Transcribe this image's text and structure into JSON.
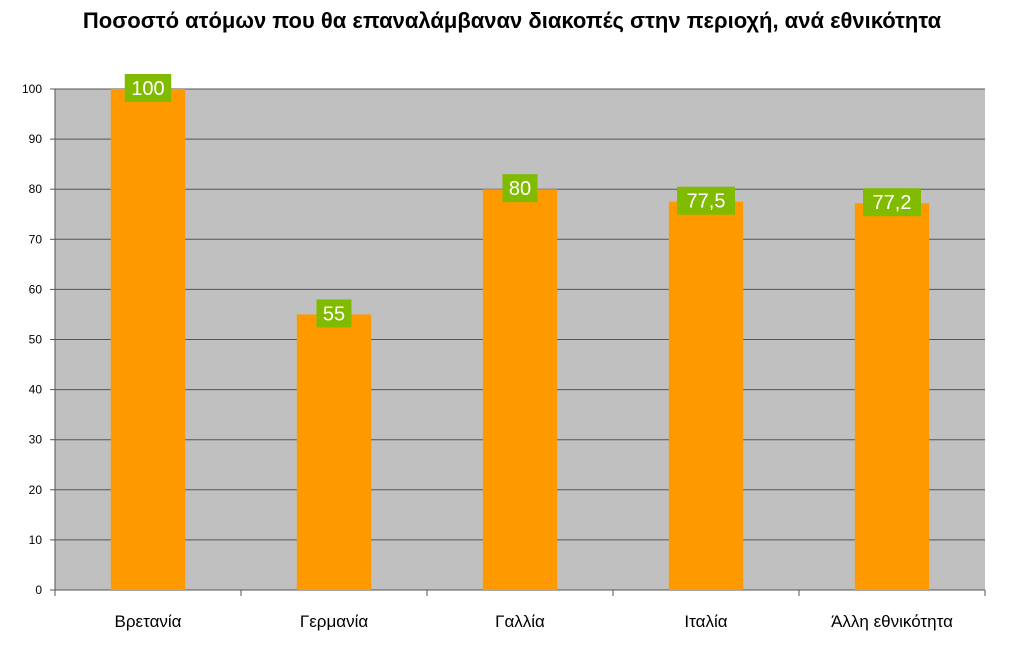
{
  "chart_data": {
    "type": "bar",
    "title": "Ποσοστό ατόμων που θα επαναλάμβαναν διακοπές στην περιοχή, ανά εθνικότητα",
    "categories": [
      "Βρετανία",
      "Γερμανία",
      "Γαλλία",
      "Ιταλία",
      "Άλλη εθνικότητα"
    ],
    "values": [
      100,
      55,
      80,
      77.5,
      77.2
    ],
    "data_labels": [
      "100",
      "55",
      "80",
      "77,5",
      "77,2"
    ],
    "ylim": [
      0,
      100
    ],
    "yticks": [
      0,
      10,
      20,
      30,
      40,
      50,
      60,
      70,
      80,
      90,
      100
    ],
    "xlabel": "",
    "ylabel": "",
    "grid": true,
    "legend": "none",
    "colors": {
      "bar": "#ff9900",
      "plot_background": "#c0c0c0",
      "data_label_background": "#80bb00",
      "gridline": "#555555"
    }
  }
}
